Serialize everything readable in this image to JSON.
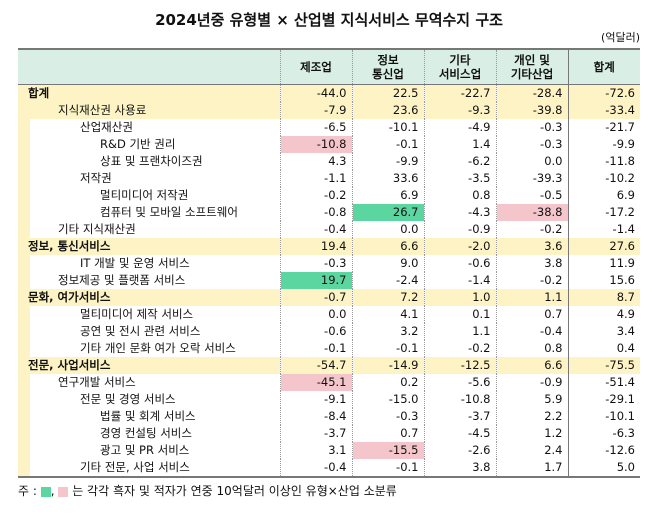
{
  "title": "2024년중 유형별 × 산업별 지식서비스 무역수지 구조",
  "unit": "(억달러)",
  "columns": [
    "제조업",
    "정보\n통신업",
    "기타\n서비스업",
    "개인 및\n기타산업",
    "합계"
  ],
  "highlight_colors": {
    "surplus": "#5cd6a0",
    "deficit": "#f4c6cc"
  },
  "rows": [
    {
      "label": "합계",
      "level": 0,
      "values": [
        "-44.0",
        "22.5",
        "-22.7",
        "-28.4",
        "-72.6"
      ]
    },
    {
      "label": "지식재산권 사용료",
      "level": 1,
      "y": true,
      "values": [
        "-7.9",
        "23.6",
        "-9.3",
        "-39.8",
        "-33.4"
      ]
    },
    {
      "label": "산업재산권",
      "level": 2,
      "values": [
        "-6.5",
        "-10.1",
        "-4.9",
        "-0.3",
        "-21.7"
      ]
    },
    {
      "label": "R&D 기반 권리",
      "level": 3,
      "values": [
        "-10.8",
        "-0.1",
        "1.4",
        "-0.3",
        "-9.9"
      ],
      "hl": {
        "0": "p"
      }
    },
    {
      "label": "상표 및 프랜차이즈권",
      "level": 3,
      "values": [
        "4.3",
        "-9.9",
        "-6.2",
        "0.0",
        "-11.8"
      ]
    },
    {
      "label": "저작권",
      "level": 2,
      "values": [
        "-1.1",
        "33.6",
        "-3.5",
        "-39.3",
        "-10.2"
      ]
    },
    {
      "label": "멀티미디어 저작권",
      "level": 3,
      "values": [
        "-0.2",
        "6.9",
        "0.8",
        "-0.5",
        "6.9"
      ]
    },
    {
      "label": "컴퓨터 및 모바일 소프트웨어",
      "level": 3,
      "values": [
        "-0.8",
        "26.7",
        "-4.3",
        "-38.8",
        "-17.2"
      ],
      "hl": {
        "1": "g",
        "3": "p"
      }
    },
    {
      "label": "기타 지식재산권",
      "level": 1,
      "values": [
        "-0.4",
        "0.0",
        "-0.9",
        "-0.2",
        "-1.4"
      ]
    },
    {
      "label": "정보, 통신서비스",
      "level": 0,
      "values": [
        "19.4",
        "6.6",
        "-2.0",
        "3.6",
        "27.6"
      ]
    },
    {
      "label": "IT 개발 및 운영 서비스",
      "level": 2,
      "values": [
        "-0.3",
        "9.0",
        "-0.6",
        "3.8",
        "11.9"
      ]
    },
    {
      "label": "정보제공 및 플랫폼 서비스",
      "level": 1,
      "values": [
        "19.7",
        "-2.4",
        "-1.4",
        "-0.2",
        "15.6"
      ],
      "hl": {
        "0": "g"
      }
    },
    {
      "label": "문화, 여가서비스",
      "level": 0,
      "values": [
        "-0.7",
        "7.2",
        "1.0",
        "1.1",
        "8.7"
      ]
    },
    {
      "label": "멀티미디어 제작 서비스",
      "level": 2,
      "values": [
        "0.0",
        "4.1",
        "0.1",
        "0.7",
        "4.9"
      ]
    },
    {
      "label": "공연 및 전시 관련 서비스",
      "level": 2,
      "values": [
        "-0.6",
        "3.2",
        "1.1",
        "-0.4",
        "3.4"
      ]
    },
    {
      "label": "기타 개인 문화 여가 오락 서비스",
      "level": 2,
      "values": [
        "-0.1",
        "-0.1",
        "-0.2",
        "0.8",
        "0.4"
      ]
    },
    {
      "label": "전문, 사업서비스",
      "level": 0,
      "values": [
        "-54.7",
        "-14.9",
        "-12.5",
        "6.6",
        "-75.5"
      ]
    },
    {
      "label": "연구개발 서비스",
      "level": 1,
      "values": [
        "-45.1",
        "0.2",
        "-5.6",
        "-0.9",
        "-51.4"
      ],
      "hl": {
        "0": "p"
      }
    },
    {
      "label": "전문 및 경영 서비스",
      "level": 2,
      "values": [
        "-9.1",
        "-15.0",
        "-10.8",
        "5.9",
        "-29.1"
      ]
    },
    {
      "label": "법률 및 회계 서비스",
      "level": 3,
      "values": [
        "-8.4",
        "-0.3",
        "-3.7",
        "2.2",
        "-10.1"
      ]
    },
    {
      "label": "경영 컨설팅 서비스",
      "level": 3,
      "values": [
        "-3.7",
        "0.7",
        "-4.5",
        "1.2",
        "-6.3"
      ]
    },
    {
      "label": "광고 및 PR 서비스",
      "level": 3,
      "values": [
        "3.1",
        "-15.5",
        "-2.6",
        "2.4",
        "-12.6"
      ],
      "hl": {
        "1": "p"
      }
    },
    {
      "label": "기타 전문, 사업 서비스",
      "level": 2,
      "values": [
        "-0.4",
        "-0.1",
        "3.8",
        "1.7",
        "5.0"
      ]
    }
  ],
  "note": {
    "prefix": "주 :",
    "text": "는 각각 흑자 및 적자가 연중 10억달러 이상인 유형×산업 소분류"
  }
}
